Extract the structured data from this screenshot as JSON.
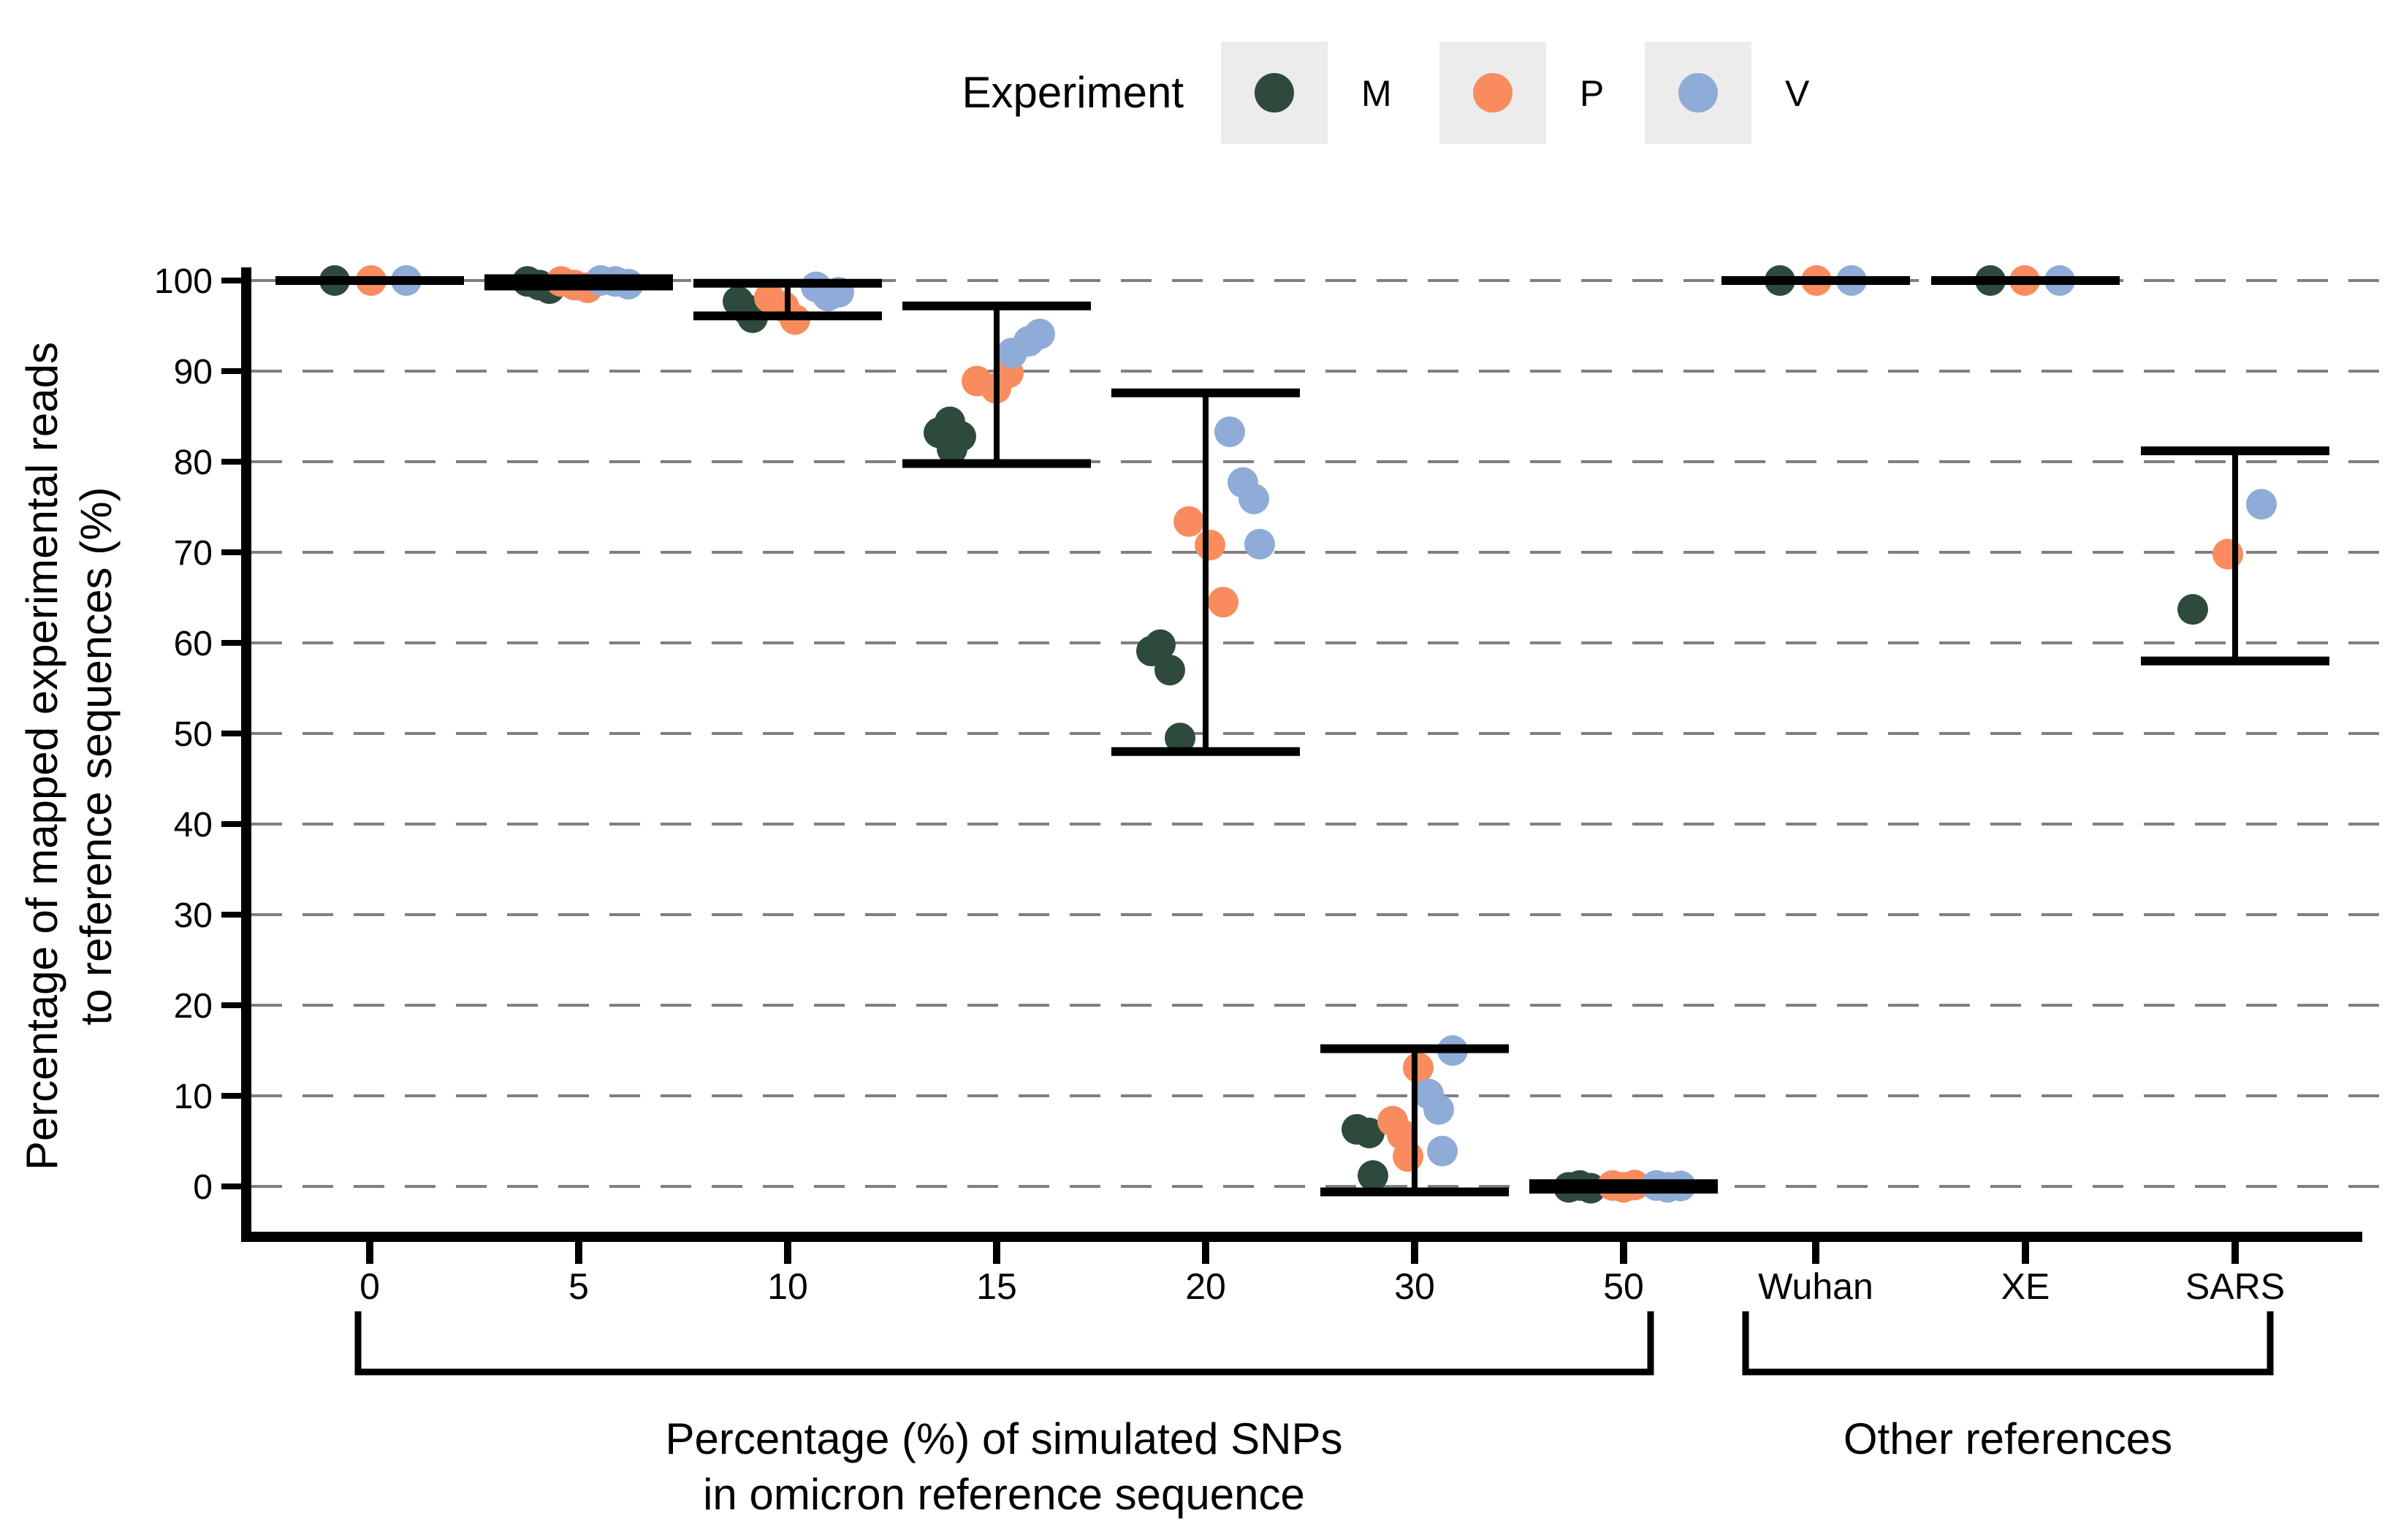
{
  "legend": {
    "title": "Experiment",
    "key_background": "#ececec",
    "items": [
      {
        "label": "M",
        "color": "#2e4a3c"
      },
      {
        "label": "P",
        "color": "#f98c5f"
      },
      {
        "label": "V",
        "color": "#8fabd7"
      }
    ]
  },
  "y_axis": {
    "title_line1": "Percentage of mapped experimental reads",
    "title_line2": "to reference sequences (%)",
    "ticks": [
      0,
      10,
      20,
      30,
      40,
      50,
      60,
      70,
      80,
      90,
      100
    ]
  },
  "x_axis": {
    "group1_label_line1": "Percentage (%) of simulated SNPs",
    "group1_label_line2": "in omicron reference sequence",
    "group2_label": "Other references"
  },
  "chart_data": {
    "type": "scatter",
    "subtype": "jittered points with mean error bars",
    "title": "",
    "ylabel": "Percentage of mapped experimental reads to reference sequences (%)",
    "xlabel_group1": "Percentage (%) of simulated SNPs in omicron reference sequence",
    "xlabel_group2": "Other references",
    "ylim": [
      -5,
      103
    ],
    "grid": "horizontal dashed every 10",
    "legend_position": "top",
    "series": [
      "M",
      "P",
      "V"
    ],
    "colors": {
      "M": "#2e4a3c",
      "P": "#f98c5f",
      "V": "#8fabd7"
    },
    "gridline_color": "#7f7f7f",
    "categories": [
      {
        "label": "0",
        "group": 0,
        "error": {
          "top": 100,
          "bottom": 100
        },
        "points": [
          {
            "s": "M",
            "dx": -48,
            "v": 100
          },
          {
            "s": "P",
            "dx": 2,
            "v": 100
          },
          {
            "s": "V",
            "dx": 50,
            "v": 100
          }
        ]
      },
      {
        "label": "5",
        "group": 0,
        "error": {
          "top": 100.2,
          "bottom": 99.4
        },
        "points": [
          {
            "s": "M",
            "dx": -70,
            "v": 99.9
          },
          {
            "s": "M",
            "dx": -54,
            "v": 99.5
          },
          {
            "s": "M",
            "dx": -40,
            "v": 99.1
          },
          {
            "s": "P",
            "dx": -24,
            "v": 99.9
          },
          {
            "s": "P",
            "dx": -6,
            "v": 99.5
          },
          {
            "s": "P",
            "dx": 12,
            "v": 99.2
          },
          {
            "s": "V",
            "dx": 30,
            "v": 100
          },
          {
            "s": "V",
            "dx": 50,
            "v": 99.9
          },
          {
            "s": "V",
            "dx": 68,
            "v": 99.6
          }
        ]
      },
      {
        "label": "10",
        "group": 0,
        "error": {
          "top": 99.7,
          "bottom": 96.1
        },
        "points": [
          {
            "s": "M",
            "dx": -68,
            "v": 97.7
          },
          {
            "s": "M",
            "dx": -58,
            "v": 96.9
          },
          {
            "s": "M",
            "dx": -48,
            "v": 95.9
          },
          {
            "s": "P",
            "dx": -25,
            "v": 98.1
          },
          {
            "s": "P",
            "dx": -5,
            "v": 97.1
          },
          {
            "s": "P",
            "dx": 10,
            "v": 95.7
          },
          {
            "s": "V",
            "dx": 39,
            "v": 99.3
          },
          {
            "s": "V",
            "dx": 55,
            "v": 98.3
          },
          {
            "s": "V",
            "dx": 70,
            "v": 98.7
          }
        ]
      },
      {
        "label": "15",
        "group": 0,
        "error": {
          "top": 97.2,
          "bottom": 79.8
        },
        "points": [
          {
            "s": "M",
            "dx": -79,
            "v": 83.2
          },
          {
            "s": "M",
            "dx": -64,
            "v": 84.4
          },
          {
            "s": "M",
            "dx": -61,
            "v": 81.4
          },
          {
            "s": "M",
            "dx": -49,
            "v": 82.8
          },
          {
            "s": "P",
            "dx": -27,
            "v": 88.9
          },
          {
            "s": "P",
            "dx": -1,
            "v": 88.1
          },
          {
            "s": "P",
            "dx": 16,
            "v": 89.8
          },
          {
            "s": "V",
            "dx": 21,
            "v": 92
          },
          {
            "s": "V",
            "dx": 44,
            "v": 93.3
          },
          {
            "s": "V",
            "dx": 59,
            "v": 94.1
          }
        ]
      },
      {
        "label": "20",
        "group": 0,
        "error": {
          "top": 87.6,
          "bottom": 48
        },
        "points": [
          {
            "s": "M",
            "dx": -74,
            "v": 59.1
          },
          {
            "s": "M",
            "dx": -62,
            "v": 59.8
          },
          {
            "s": "M",
            "dx": -49,
            "v": 57
          },
          {
            "s": "M",
            "dx": -35,
            "v": 49.5
          },
          {
            "s": "P",
            "dx": -23,
            "v": 73.4
          },
          {
            "s": "P",
            "dx": 6,
            "v": 70.8
          },
          {
            "s": "P",
            "dx": 24,
            "v": 64.5
          },
          {
            "s": "V",
            "dx": 33,
            "v": 83.3
          },
          {
            "s": "V",
            "dx": 51,
            "v": 77.7
          },
          {
            "s": "V",
            "dx": 66,
            "v": 75.9
          },
          {
            "s": "V",
            "dx": 74,
            "v": 70.9
          }
        ]
      },
      {
        "label": "30",
        "group": 0,
        "error": {
          "top": 15.2,
          "bottom": -0.6
        },
        "points": [
          {
            "s": "M",
            "dx": -79,
            "v": 6.3
          },
          {
            "s": "M",
            "dx": -62,
            "v": 5.9
          },
          {
            "s": "M",
            "dx": -57,
            "v": 1.2
          },
          {
            "s": "P",
            "dx": -30,
            "v": 7.2
          },
          {
            "s": "P",
            "dx": -17,
            "v": 5.7
          },
          {
            "s": "P",
            "dx": -9,
            "v": 3.3
          },
          {
            "s": "P",
            "dx": 5,
            "v": 13.1
          },
          {
            "s": "V",
            "dx": 19,
            "v": 10.2
          },
          {
            "s": "V",
            "dx": 33,
            "v": 8.5
          },
          {
            "s": "V",
            "dx": 38,
            "v": 3.9
          },
          {
            "s": "V",
            "dx": 52,
            "v": 15
          }
        ]
      },
      {
        "label": "50",
        "group": 0,
        "error": {
          "top": 0.3,
          "bottom": -0.3
        },
        "points": [
          {
            "s": "M",
            "dx": -75,
            "v": -0.1
          },
          {
            "s": "M",
            "dx": -60,
            "v": 0.1
          },
          {
            "s": "M",
            "dx": -45,
            "v": -0.2
          },
          {
            "s": "P",
            "dx": -15,
            "v": 0.1
          },
          {
            "s": "P",
            "dx": 0,
            "v": -0.1
          },
          {
            "s": "P",
            "dx": 15,
            "v": 0.15
          },
          {
            "s": "V",
            "dx": 45,
            "v": 0.1
          },
          {
            "s": "V",
            "dx": 60,
            "v": -0.1
          },
          {
            "s": "V",
            "dx": 78,
            "v": 0.05
          }
        ]
      },
      {
        "label": "Wuhan",
        "group": 1,
        "error": {
          "top": 100,
          "bottom": 100
        },
        "points": [
          {
            "s": "M",
            "dx": -49,
            "v": 100
          },
          {
            "s": "P",
            "dx": 1,
            "v": 100
          },
          {
            "s": "V",
            "dx": 49,
            "v": 100
          }
        ]
      },
      {
        "label": "XE",
        "group": 1,
        "error": {
          "top": 100,
          "bottom": 100
        },
        "points": [
          {
            "s": "M",
            "dx": -48,
            "v": 100
          },
          {
            "s": "P",
            "dx": -1,
            "v": 100
          },
          {
            "s": "V",
            "dx": 47,
            "v": 100
          }
        ]
      },
      {
        "label": "SARS",
        "group": 1,
        "error": {
          "top": 81.2,
          "bottom": 58
        },
        "points": [
          {
            "s": "M",
            "dx": -58,
            "v": 63.7
          },
          {
            "s": "P",
            "dx": -10,
            "v": 69.8
          },
          {
            "s": "V",
            "dx": 36,
            "v": 75.3
          }
        ]
      }
    ]
  }
}
